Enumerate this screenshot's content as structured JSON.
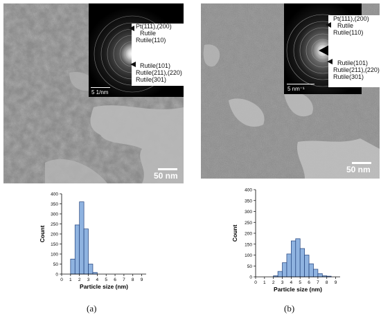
{
  "colors": {
    "bar_fill": "#8fb3e0",
    "bar_stroke": "#1f3f7a"
  },
  "panels": [
    {
      "caption": "(a)",
      "scale_bar": "50 nm",
      "saed": {
        "scale": "5 1/nm",
        "labels": {
          "pt": "Pt(111),(200)",
          "rutile": "Rutile",
          "rutile110": "Rutile(110)",
          "rutile101": "Rutile(101)",
          "rutile211": "Rutile(211),(220)",
          "rutile301": "Rutile(301)"
        }
      }
    },
    {
      "caption": "(b)",
      "scale_bar": "50 nm",
      "saed": {
        "scale": "5 nm⁻¹",
        "labels": {
          "pt": "Pt(111),(200)",
          "rutile": "Rutile",
          "rutile110": "Rutile(110)",
          "rutile101": "Rutile(101)",
          "rutile211": "Rutile(211),(220)",
          "rutile301": "Rutile(301)"
        }
      }
    }
  ],
  "chart_data": [
    {
      "type": "bar",
      "title": "",
      "xlabel": "Particle size (nm)",
      "ylabel": "Count",
      "ylim": [
        0,
        400
      ],
      "xlim": [
        0,
        9.5
      ],
      "yticks": [
        0,
        50,
        100,
        150,
        200,
        250,
        300,
        350,
        400
      ],
      "xticks": [
        0,
        1,
        2,
        3,
        4,
        5,
        6,
        7,
        8,
        9
      ],
      "bin_width": 0.5,
      "bin_starts": [
        0.5,
        1.0,
        1.5,
        2.0,
        2.5,
        3.0,
        3.5,
        4.0,
        4.5,
        5.0,
        5.5,
        6.0,
        6.5,
        7.0,
        7.5,
        8.0,
        8.5
      ],
      "values": [
        0,
        75,
        245,
        360,
        225,
        50,
        8,
        0,
        0,
        0,
        0,
        0,
        0,
        0,
        0,
        0,
        0
      ]
    },
    {
      "type": "bar",
      "title": "",
      "xlabel": "Particle size (nm)",
      "ylabel": "Count",
      "ylim": [
        0,
        400
      ],
      "xlim": [
        0,
        9.5
      ],
      "yticks": [
        0,
        50,
        100,
        150,
        200,
        250,
        300,
        350,
        400
      ],
      "xticks": [
        0,
        1,
        2,
        3,
        4,
        5,
        6,
        7,
        8,
        9
      ],
      "bin_width": 0.5,
      "bin_starts": [
        0.5,
        1.0,
        1.5,
        2.0,
        2.5,
        3.0,
        3.5,
        4.0,
        4.5,
        5.0,
        5.5,
        6.0,
        6.5,
        7.0,
        7.5,
        8.0,
        8.5
      ],
      "values": [
        0,
        0,
        0,
        5,
        25,
        65,
        105,
        165,
        175,
        130,
        100,
        60,
        35,
        15,
        5,
        3,
        0
      ]
    }
  ]
}
